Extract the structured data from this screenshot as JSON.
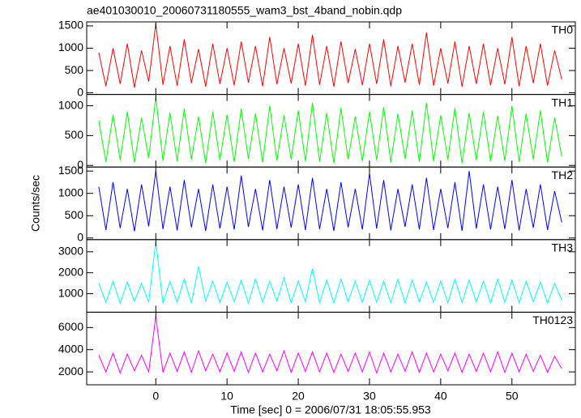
{
  "chart_data": {
    "type": "line",
    "title": "ae401030010_20060731180555_wam3_bst_4band_nobin.qdp",
    "xlabel": "Time [sec] 0 = 2006/07/31 18:05:55.953",
    "ylabel": "Counts/sec",
    "xlim": [
      -9.7,
      58.9
    ],
    "xticks": [
      0,
      10,
      20,
      30,
      40,
      50
    ],
    "x": [
      -8,
      -7,
      -6,
      -5,
      -4,
      -3,
      -2,
      -1,
      0,
      1,
      2,
      3,
      4,
      5,
      6,
      7,
      8,
      9,
      10,
      11,
      12,
      13,
      14,
      15,
      16,
      17,
      18,
      19,
      20,
      21,
      22,
      23,
      24,
      25,
      26,
      27,
      28,
      29,
      30,
      31,
      32,
      33,
      34,
      35,
      36,
      37,
      38,
      39,
      40,
      41,
      42,
      43,
      44,
      45,
      46,
      47,
      48,
      49,
      50,
      51,
      52,
      53,
      54,
      55,
      56,
      57
    ],
    "series": [
      {
        "name": "TH0",
        "color": "#ff0000",
        "ylim": [
          -36,
          1590
        ],
        "yticks": [
          0,
          500,
          1000,
          1500
        ],
        "values": [
          900,
          150,
          1000,
          200,
          1100,
          120,
          950,
          250,
          1550,
          180,
          1050,
          160,
          1200,
          220,
          980,
          140,
          1100,
          200,
          1000,
          170,
          1150,
          230,
          1050,
          150,
          1250,
          190,
          1000,
          210,
          1100,
          160,
          1300,
          180,
          1050,
          140,
          1150,
          220,
          980,
          170,
          1100,
          200,
          1200,
          150,
          1050,
          230,
          1100,
          180,
          1350,
          160,
          1000,
          210,
          1150,
          140,
          1050,
          200,
          1100,
          170,
          1000,
          190,
          1250,
          150,
          1050,
          220,
          1100,
          160,
          950,
          300
        ]
      },
      {
        "name": "TH1",
        "color": "#00ff00",
        "ylim": [
          -27,
          1190
        ],
        "yticks": [
          0,
          500,
          1000
        ],
        "values": [
          750,
          60,
          850,
          90,
          900,
          50,
          800,
          120,
          1150,
          80,
          880,
          70,
          950,
          100,
          820,
          40,
          900,
          90,
          850,
          60,
          950,
          110,
          870,
          50,
          1000,
          80,
          840,
          100,
          920,
          70,
          1050,
          60,
          880,
          40,
          960,
          100,
          820,
          70,
          900,
          90,
          980,
          50,
          870,
          110,
          920,
          60,
          1050,
          70,
          840,
          100,
          960,
          40,
          880,
          90,
          900,
          70,
          830,
          80,
          1000,
          60,
          870,
          100,
          920,
          50,
          800,
          150
        ]
      },
      {
        "name": "TH2",
        "color": "#0000ff",
        "ylim": [
          -36,
          1590
        ],
        "yticks": [
          0,
          500,
          1000,
          1500
        ],
        "values": [
          1150,
          180,
          1250,
          220,
          1100,
          150,
          1200,
          260,
          1500,
          200,
          1150,
          170,
          1300,
          240,
          1100,
          160,
          1200,
          210,
          1150,
          190,
          1400,
          250,
          1100,
          170,
          1300,
          200,
          1150,
          230,
          1200,
          180,
          1350,
          200,
          1100,
          160,
          1250,
          240,
          1100,
          190,
          1450,
          210,
          1300,
          170,
          1100,
          250,
          1200,
          190,
          1350,
          180,
          1100,
          220,
          1250,
          160,
          1500,
          210,
          1200,
          190,
          1150,
          200,
          1300,
          170,
          1100,
          230,
          1200,
          180,
          1050,
          350
        ]
      },
      {
        "name": "TH3",
        "color": "#00ffff",
        "ylim": [
          120,
          3580
        ],
        "yticks": [
          1000,
          2000,
          3000
        ],
        "values": [
          1500,
          600,
          1600,
          550,
          1550,
          650,
          1500,
          600,
          3500,
          550,
          1600,
          600,
          1700,
          550,
          2300,
          650,
          1600,
          580,
          1550,
          620,
          1650,
          560,
          1700,
          600,
          1600,
          640,
          1750,
          570,
          1600,
          610,
          2200,
          580,
          1650,
          560,
          1700,
          620,
          1600,
          590,
          1650,
          600,
          1600,
          580,
          1700,
          560,
          1650,
          620,
          1550,
          600,
          1600,
          570,
          1700,
          590,
          1650,
          610,
          1600,
          560,
          1700,
          600,
          1650,
          580,
          1600,
          620,
          1550,
          560,
          1500,
          700
        ]
      },
      {
        "name": "TH0123",
        "color": "#ff00ff",
        "ylim": [
          836,
          7380
        ],
        "yticks": [
          2000,
          4000,
          6000
        ],
        "values": [
          3500,
          2000,
          3700,
          1900,
          3600,
          2100,
          3500,
          2000,
          7000,
          1950,
          3700,
          2050,
          3800,
          1950,
          3900,
          2100,
          3600,
          2000,
          3700,
          2050,
          3800,
          1950,
          3700,
          2000,
          3600,
          2100,
          3900,
          1950,
          3700,
          2050,
          3800,
          2000,
          3700,
          1950,
          3600,
          2050,
          3700,
          2000,
          3800,
          1900,
          3700,
          2000,
          3600,
          2050,
          3800,
          1950,
          3700,
          2000,
          3600,
          2100,
          3700,
          1950,
          3600,
          2050,
          3700,
          2000,
          3800,
          1950,
          3700,
          2000,
          3600,
          2050,
          3500,
          1950,
          3400,
          2300
        ]
      }
    ]
  }
}
